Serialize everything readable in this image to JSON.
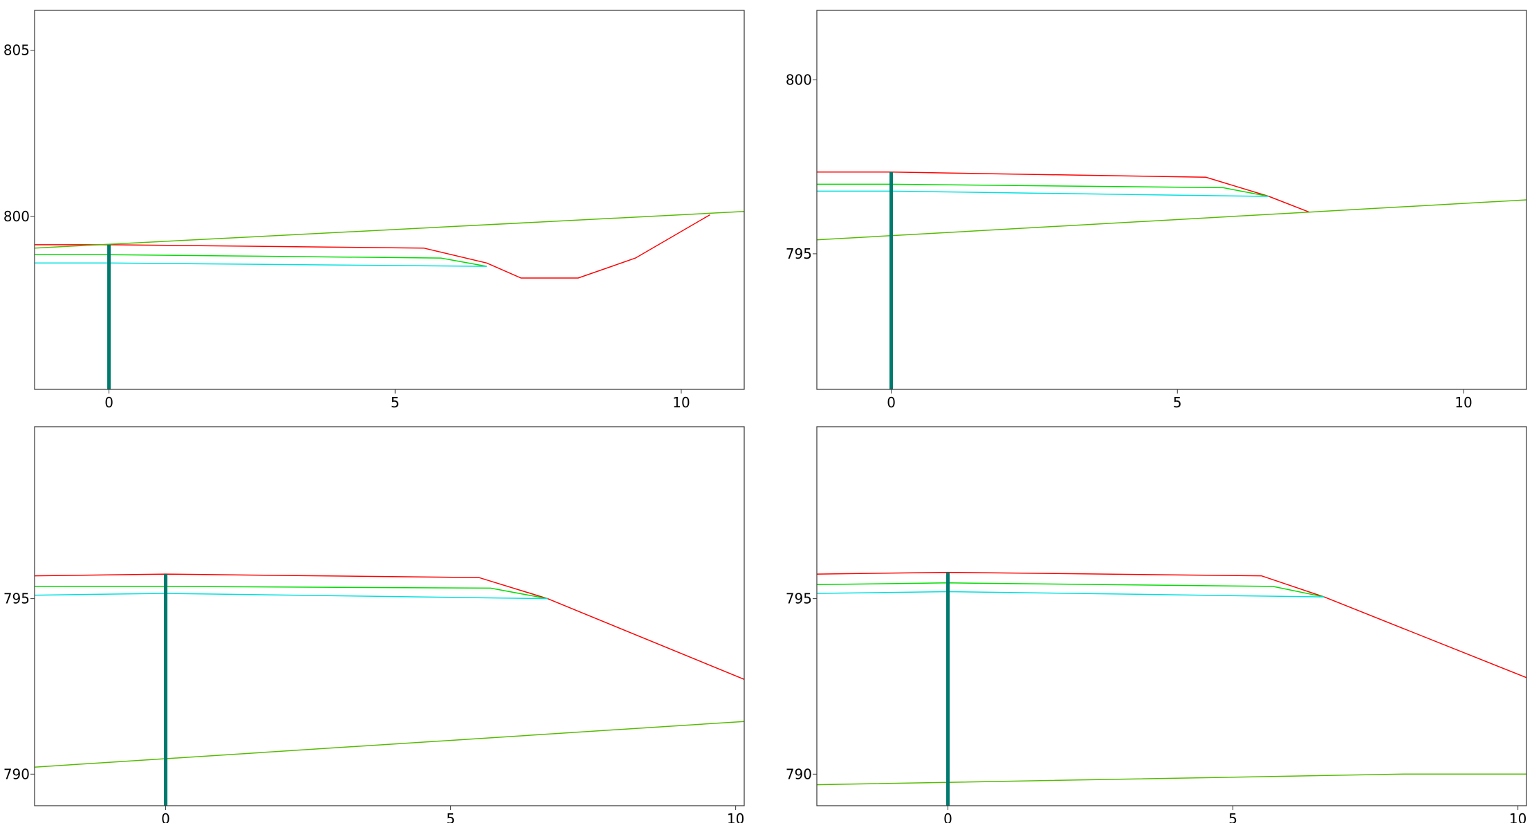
{
  "charts": [
    {
      "type": "line",
      "title": "",
      "xlabel": "",
      "ylabel": "",
      "xlim": [
        -1.3,
        11.1
      ],
      "ylim": [
        794.8,
        806.2
      ],
      "xticks": [
        0,
        5,
        10
      ],
      "yticks": [
        800,
        805
      ],
      "grid": false,
      "legend": "none",
      "series": [
        {
          "color": "#ff0000",
          "points": [
            [
              -1.3,
              799.15
            ],
            [
              0,
              799.15
            ],
            [
              5.5,
              799.05
            ],
            [
              6.6,
              798.6
            ],
            [
              7.2,
              798.15
            ],
            [
              8.2,
              798.15
            ],
            [
              9.2,
              798.75
            ],
            [
              10.5,
              800.05
            ]
          ]
        },
        {
          "color": "#00dd00",
          "points": [
            [
              -1.3,
              798.85
            ],
            [
              0,
              798.85
            ],
            [
              5.8,
              798.75
            ],
            [
              6.6,
              798.5
            ]
          ]
        },
        {
          "color": "#00e0e0",
          "points": [
            [
              -1.3,
              798.6
            ],
            [
              0,
              798.6
            ],
            [
              6.6,
              798.5
            ]
          ]
        },
        {
          "color": "#55bb00",
          "points": [
            [
              -1.3,
              799.05
            ],
            [
              11.1,
              800.15
            ]
          ]
        }
      ],
      "marker": {
        "x": 0,
        "y_top": 799.15,
        "color": "#007a6e"
      }
    },
    {
      "type": "line",
      "title": "",
      "xlabel": "",
      "ylabel": "",
      "xlim": [
        -1.3,
        11.1
      ],
      "ylim": [
        791.1,
        802.0
      ],
      "xticks": [
        0,
        5,
        10
      ],
      "yticks": [
        795,
        800
      ],
      "grid": false,
      "legend": "none",
      "series": [
        {
          "color": "#ff0000",
          "points": [
            [
              -1.3,
              797.35
            ],
            [
              0,
              797.35
            ],
            [
              5.5,
              797.2
            ],
            [
              6.6,
              796.65
            ],
            [
              7.3,
              796.2
            ]
          ]
        },
        {
          "color": "#00dd00",
          "points": [
            [
              -1.3,
              797.0
            ],
            [
              0,
              797.0
            ],
            [
              5.8,
              796.9
            ],
            [
              6.6,
              796.65
            ]
          ]
        },
        {
          "color": "#00e0e0",
          "points": [
            [
              -1.3,
              796.8
            ],
            [
              0,
              796.8
            ],
            [
              6.6,
              796.65
            ]
          ]
        },
        {
          "color": "#55bb00",
          "points": [
            [
              -1.3,
              795.4
            ],
            [
              11.1,
              796.55
            ]
          ]
        }
      ],
      "marker": {
        "x": 0,
        "y_top": 797.35,
        "color": "#007a6e"
      }
    },
    {
      "type": "line",
      "title": "",
      "xlabel": "",
      "ylabel": "",
      "xlim": [
        -2.3,
        10.15
      ],
      "ylim": [
        789.1,
        799.9
      ],
      "xticks": [
        0,
        5,
        10
      ],
      "yticks": [
        790,
        795
      ],
      "grid": false,
      "legend": "none",
      "series": [
        {
          "color": "#ff0000",
          "points": [
            [
              -2.3,
              795.65
            ],
            [
              0,
              795.7
            ],
            [
              5.5,
              795.6
            ],
            [
              6.7,
              795.0
            ],
            [
              10.15,
              792.7
            ]
          ]
        },
        {
          "color": "#00dd00",
          "points": [
            [
              -2.3,
              795.35
            ],
            [
              0,
              795.35
            ],
            [
              5.7,
              795.3
            ],
            [
              6.7,
              795.0
            ]
          ]
        },
        {
          "color": "#00e0e0",
          "points": [
            [
              -2.3,
              795.1
            ],
            [
              0,
              795.15
            ],
            [
              6.7,
              795.0
            ]
          ]
        },
        {
          "color": "#55bb00",
          "points": [
            [
              -2.3,
              790.2
            ],
            [
              10.15,
              791.5
            ]
          ]
        }
      ],
      "marker": {
        "x": 0,
        "y_top": 795.7,
        "color": "#007a6e"
      }
    },
    {
      "type": "line",
      "title": "",
      "xlabel": "",
      "ylabel": "",
      "xlim": [
        -2.3,
        10.15
      ],
      "ylim": [
        789.1,
        799.9
      ],
      "xticks": [
        0,
        5,
        10
      ],
      "yticks": [
        790,
        795
      ],
      "grid": false,
      "legend": "none",
      "series": [
        {
          "color": "#ff0000",
          "points": [
            [
              -2.3,
              795.7
            ],
            [
              0,
              795.75
            ],
            [
              5.5,
              795.65
            ],
            [
              6.6,
              795.05
            ],
            [
              10.15,
              792.75
            ]
          ]
        },
        {
          "color": "#00dd00",
          "points": [
            [
              -2.3,
              795.4
            ],
            [
              0,
              795.45
            ],
            [
              5.7,
              795.35
            ],
            [
              6.6,
              795.05
            ]
          ]
        },
        {
          "color": "#00e0e0",
          "points": [
            [
              -2.3,
              795.15
            ],
            [
              0,
              795.2
            ],
            [
              6.6,
              795.05
            ]
          ]
        },
        {
          "color": "#55bb00",
          "points": [
            [
              -2.3,
              789.7
            ],
            [
              8.0,
              790.0
            ],
            [
              10.15,
              790.0
            ]
          ]
        }
      ],
      "marker": {
        "x": 0,
        "y_top": 795.75,
        "color": "#007a6e"
      }
    }
  ]
}
